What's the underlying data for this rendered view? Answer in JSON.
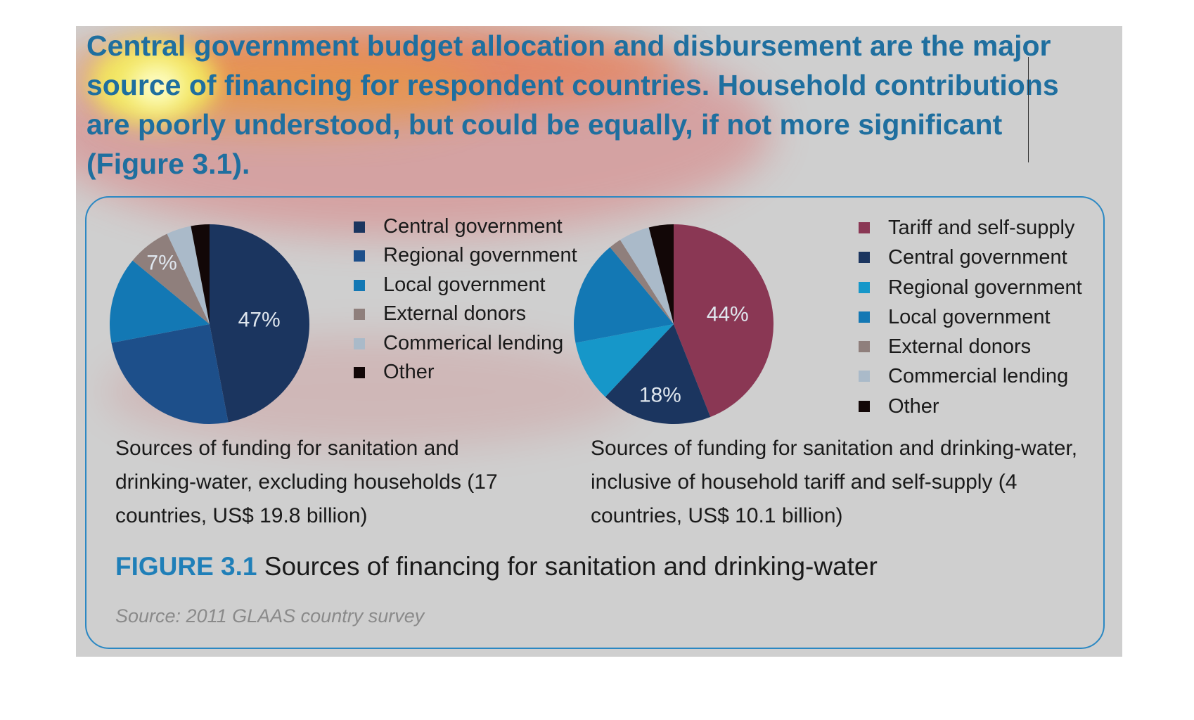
{
  "headline": "Central government budget allocation and disbursement are the major source of financing for respondent countries. Household contributions are poorly understood, but could be equally, if not more significant (Figure 3.1).",
  "figure": {
    "label": "FIGURE 3.1",
    "title": "Sources of financing for sanitation and drinking-water",
    "source": "Source: 2011 GLAAS country survey"
  },
  "colors": {
    "panel_bg": "#cfcfcf",
    "box_border": "#2b88c3",
    "headline": "#1f6f9f",
    "central_government": "#1b355f",
    "regional_government": "#1d4f8a",
    "local_government": "#1378b4",
    "regional_government_light": "#1697c9",
    "external_donors": "#8f7f7c",
    "commercial_lending": "#aabac9",
    "other": "#120707",
    "tariff_self_supply": "#8a3754"
  },
  "chart_data": [
    {
      "type": "pie",
      "caption": "Sources of funding for sanitation and drinking-water, excluding households (17 countries, US$ 19.8 billion)",
      "slices": [
        {
          "name": "Central government",
          "value": 47,
          "color": "#1b355f",
          "label": "47%"
        },
        {
          "name": "Regional government",
          "value": 25,
          "color": "#1d4f8a",
          "label": ""
        },
        {
          "name": "Local government",
          "value": 14,
          "color": "#1378b4",
          "label": ""
        },
        {
          "name": "External donors",
          "value": 7,
          "color": "#8f7f7c",
          "label": "7%"
        },
        {
          "name": "Commerical lending",
          "value": 4,
          "color": "#aabac9",
          "label": ""
        },
        {
          "name": "Other",
          "value": 3,
          "color": "#120707",
          "label": ""
        }
      ]
    },
    {
      "type": "pie",
      "caption": "Sources of funding for sanitation and drinking-water, inclusive of household tariff and self-supply (4 countries, US$ 10.1 billion)",
      "slices": [
        {
          "name": "Tariff and self-supply",
          "value": 44,
          "color": "#8a3754",
          "label": "44%"
        },
        {
          "name": "Central government",
          "value": 18,
          "color": "#1b355f",
          "label": "18%"
        },
        {
          "name": "Regional government",
          "value": 10,
          "color": "#1697c9",
          "label": ""
        },
        {
          "name": "Local government",
          "value": 17,
          "color": "#1378b4",
          "label": ""
        },
        {
          "name": "External donors",
          "value": 2,
          "color": "#8f7f7c",
          "label": ""
        },
        {
          "name": "Commercial lending",
          "value": 5,
          "color": "#aabac9",
          "label": ""
        },
        {
          "name": "Other",
          "value": 4,
          "color": "#120707",
          "label": ""
        }
      ]
    }
  ]
}
